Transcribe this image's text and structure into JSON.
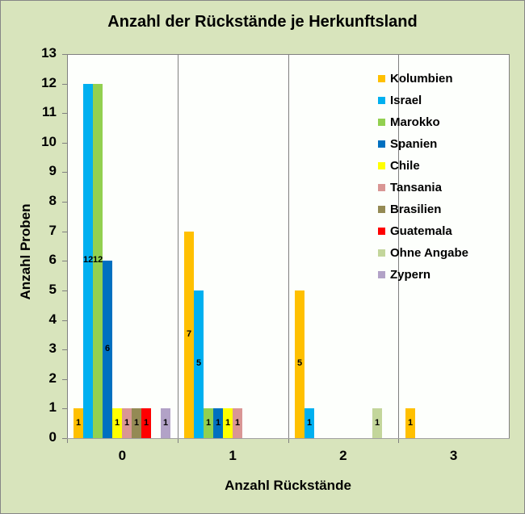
{
  "chart_data": {
    "type": "bar",
    "title": "Anzahl der Rückstände je Herkunftsland",
    "xlabel": "Anzahl Rückstände",
    "ylabel": "Anzahl Proben",
    "ylim": [
      0,
      13
    ],
    "yticks": [
      "0",
      "1",
      "2",
      "3",
      "4",
      "5",
      "6",
      "7",
      "8",
      "9",
      "10",
      "11",
      "12",
      "13"
    ],
    "categories": [
      "0",
      "1",
      "2",
      "3"
    ],
    "legend_position": "right-inside",
    "series": [
      {
        "name": "Kolumbien",
        "color": "#ffc000",
        "values": [
          1,
          7,
          5,
          1
        ]
      },
      {
        "name": "Israel",
        "color": "#00b0f0",
        "values": [
          12,
          5,
          1,
          0
        ]
      },
      {
        "name": "Marokko",
        "color": "#92d050",
        "values": [
          12,
          1,
          0,
          0
        ]
      },
      {
        "name": "Spanien",
        "color": "#0070c0",
        "values": [
          6,
          1,
          0,
          0
        ]
      },
      {
        "name": "Chile",
        "color": "#ffff00",
        "values": [
          1,
          1,
          0,
          0
        ]
      },
      {
        "name": "Tansania",
        "color": "#d99694",
        "values": [
          1,
          1,
          0,
          0
        ]
      },
      {
        "name": "Brasilien",
        "color": "#948a54",
        "values": [
          1,
          0,
          0,
          0
        ]
      },
      {
        "name": "Guatemala",
        "color": "#ff0000",
        "values": [
          1,
          0,
          0,
          0
        ]
      },
      {
        "name": "Ohne Angabe",
        "color": "#c3d69b",
        "values": [
          0,
          0,
          1,
          0
        ]
      },
      {
        "name": "Zypern",
        "color": "#b2a2c7",
        "values": [
          1,
          0,
          0,
          0
        ]
      }
    ]
  }
}
